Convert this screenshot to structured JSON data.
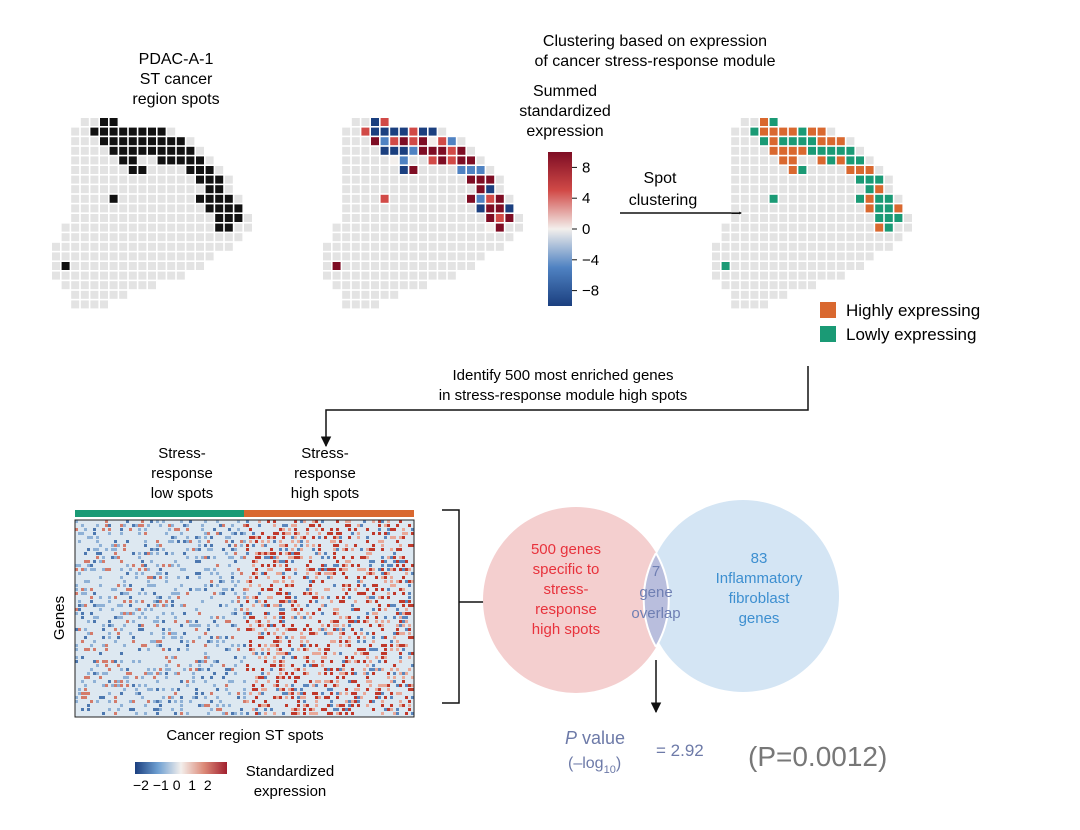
{
  "panel1": {
    "title_line1": "PDAC-A-1",
    "title_line2": "ST cancer",
    "title_line3": "region spots"
  },
  "clustering_title": {
    "line1": "Clustering based on expression",
    "line2": "of cancer stress-response module"
  },
  "colorbar": {
    "title_line1": "Summed",
    "title_line2": "standardized",
    "title_line3": "expression",
    "ticks": [
      "8",
      "4",
      "0",
      "−4",
      "−8"
    ],
    "tick_values": [
      8,
      4,
      0,
      -4,
      -8
    ],
    "range": [
      -10,
      10
    ],
    "colors": [
      "#1b3f7f",
      "#4f82c2",
      "#f3efec",
      "#d14a47",
      "#7e0d24"
    ]
  },
  "spot_clustering": {
    "line1": "Spot",
    "line2": "clustering"
  },
  "legend": {
    "high_label": "Highly expressing",
    "low_label": "Lowly expressing",
    "high_color": "#d9682f",
    "low_color": "#1a9a75"
  },
  "identify": {
    "line1": "Identify 500 most enriched genes",
    "line2": "in stress-response module high spots"
  },
  "heatmap": {
    "low_label_line1": "Stress-",
    "low_label_line2": "response",
    "low_label_line3": "low spots",
    "high_label_line1": "Stress-",
    "high_label_line2": "response",
    "high_label_line3": "high spots",
    "ylabel": "Genes",
    "xlabel": "Cancer region ST spots",
    "scale_title_line1": "Standardized",
    "scale_title_line2": "expression",
    "scale_ticks": "−2 −1 0  1  2",
    "scale_range": [
      -2,
      2
    ]
  },
  "venn": {
    "left_line1": "500 genes",
    "left_line2": "specific to",
    "left_line3": "stress-",
    "left_line4": "response",
    "left_line5": "high spots",
    "mid_line1": "7",
    "mid_line2": "gene",
    "mid_line3": "overlap",
    "right_line1": "83",
    "right_line2": "Inflammatory",
    "right_line3": "fibroblast",
    "right_line4": "genes",
    "left_color": "#f4cfcf",
    "right_color": "#cfe2f3",
    "left_text_color": "#e8323c",
    "right_text_color": "#3d8fd0",
    "mid_text_color": "#6f7fb3"
  },
  "pvalue": {
    "p_italic": "P",
    "word": " value",
    "log_open": "(–log",
    "log_sub": "10",
    "log_close": ")",
    "equals_value": "= 2.92",
    "paren_value": "(P=0.0012)"
  }
}
